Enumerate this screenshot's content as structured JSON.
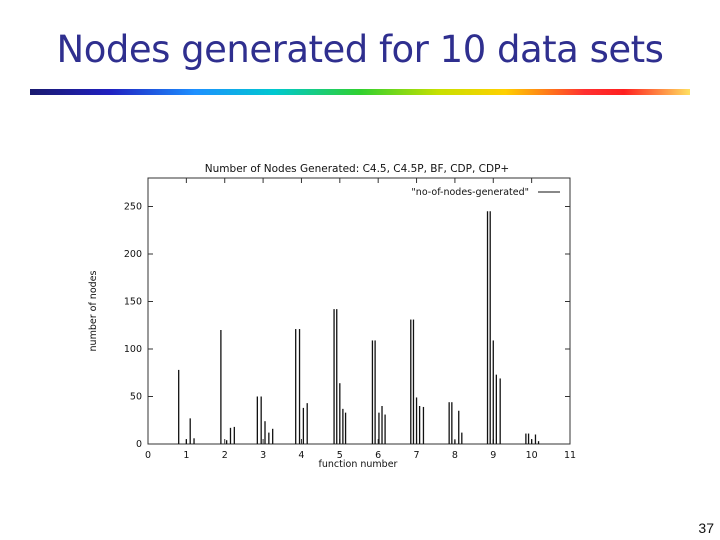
{
  "slide": {
    "title": "Nodes generated for 10 data sets",
    "page_number": "37",
    "colors": {
      "title": "#2f2f8f"
    }
  },
  "chart_data": {
    "type": "bar",
    "title": "Number of Nodes Generated: C4.5, C4.5P, BF, CDP, CDP+",
    "xlabel": "function number",
    "ylabel": "number of nodes",
    "xlim": [
      0,
      11
    ],
    "ylim": [
      0,
      280
    ],
    "xticks": [
      "0",
      "1",
      "2",
      "3",
      "4",
      "5",
      "6",
      "7",
      "8",
      "9",
      "10",
      "11"
    ],
    "yticks": [
      "0",
      "50",
      "100",
      "150",
      "200",
      "250"
    ],
    "legend": {
      "label": "\"no-of-nodes-generated\"",
      "position": "top-right"
    },
    "grid": false,
    "series": [
      {
        "name": "\"no-of-nodes-generated\"",
        "points": [
          [
            0.8,
            78
          ],
          [
            1.0,
            5
          ],
          [
            1.1,
            27
          ],
          [
            1.2,
            6
          ],
          [
            1.9,
            120
          ],
          [
            2.05,
            4
          ],
          [
            2.15,
            17
          ],
          [
            2.25,
            18
          ],
          [
            2.85,
            50
          ],
          [
            2.95,
            50
          ],
          [
            3.05,
            24
          ],
          [
            3.15,
            12
          ],
          [
            3.25,
            16
          ],
          [
            3.85,
            121
          ],
          [
            3.95,
            121
          ],
          [
            4.05,
            38
          ],
          [
            4.15,
            43
          ],
          [
            4.85,
            142
          ],
          [
            4.92,
            142
          ],
          [
            5.0,
            64
          ],
          [
            5.08,
            37
          ],
          [
            5.15,
            33
          ],
          [
            5.85,
            109
          ],
          [
            5.92,
            109
          ],
          [
            6.02,
            33
          ],
          [
            6.1,
            40
          ],
          [
            6.18,
            31
          ],
          [
            6.85,
            131
          ],
          [
            6.92,
            131
          ],
          [
            7.0,
            49
          ],
          [
            7.08,
            40
          ],
          [
            7.18,
            39
          ],
          [
            7.85,
            44
          ],
          [
            7.92,
            44
          ],
          [
            8.0,
            4
          ],
          [
            8.1,
            35
          ],
          [
            8.18,
            12
          ],
          [
            8.85,
            245
          ],
          [
            8.92,
            245
          ],
          [
            9.0,
            109
          ],
          [
            9.08,
            73
          ],
          [
            9.18,
            69
          ],
          [
            9.85,
            11
          ],
          [
            9.92,
            11
          ],
          [
            10.0,
            5
          ],
          [
            10.1,
            10
          ],
          [
            10.18,
            3
          ]
        ]
      }
    ]
  }
}
